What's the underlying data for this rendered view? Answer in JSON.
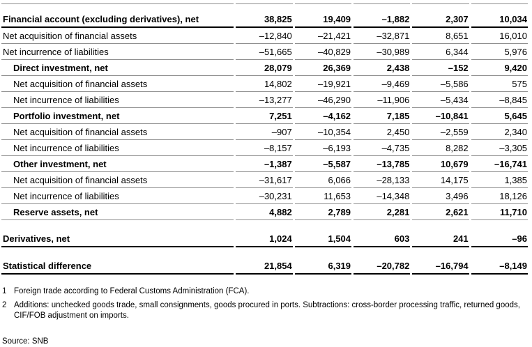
{
  "colors": {
    "rule_gray": "#8f8f8f",
    "rule_black": "#000000",
    "text": "#000000",
    "background": "#ffffff"
  },
  "table": {
    "rows": [
      {
        "label": "Financial account (excluding derivatives), net",
        "values": [
          "38,825",
          "19,409",
          "–1,882",
          "2,307",
          "10,034"
        ],
        "bold": true,
        "indent": 0,
        "rule": "thick",
        "first": true
      },
      {
        "label": "Net acquisition of financial assets",
        "values": [
          "–12,840",
          "–21,421",
          "–32,871",
          "8,651",
          "16,010"
        ],
        "bold": false,
        "indent": 0,
        "rule": "thin"
      },
      {
        "label": "Net incurrence of liabilities",
        "values": [
          "–51,665",
          "–40,829",
          "–30,989",
          "6,344",
          "5,976"
        ],
        "bold": false,
        "indent": 0,
        "rule": "thin"
      },
      {
        "label": "Direct investment, net",
        "values": [
          "28,079",
          "26,369",
          "2,438",
          "–152",
          "9,420"
        ],
        "bold": true,
        "indent": 1,
        "rule": "thin"
      },
      {
        "label": "Net acquisition of financial assets",
        "values": [
          "14,802",
          "–19,921",
          "–9,469",
          "–5,586",
          "575"
        ],
        "bold": false,
        "indent": 1,
        "rule": "thin"
      },
      {
        "label": "Net incurrence of liabilities",
        "values": [
          "–13,277",
          "–46,290",
          "–11,906",
          "–5,434",
          "–8,845"
        ],
        "bold": false,
        "indent": 1,
        "rule": "thin"
      },
      {
        "label": "Portfolio investment, net",
        "values": [
          "7,251",
          "–4,162",
          "7,185",
          "–10,841",
          "5,645"
        ],
        "bold": true,
        "indent": 1,
        "rule": "thin"
      },
      {
        "label": "Net acquisition of financial assets",
        "values": [
          "–907",
          "–10,354",
          "2,450",
          "–2,559",
          "2,340"
        ],
        "bold": false,
        "indent": 1,
        "rule": "thin"
      },
      {
        "label": "Net incurrence of liabilities",
        "values": [
          "–8,157",
          "–6,193",
          "–4,735",
          "8,282",
          "–3,305"
        ],
        "bold": false,
        "indent": 1,
        "rule": "thin"
      },
      {
        "label": "Other investment, net",
        "values": [
          "–1,387",
          "–5,587",
          "–13,785",
          "10,679",
          "–16,741"
        ],
        "bold": true,
        "indent": 1,
        "rule": "thin"
      },
      {
        "label": "Net acquisition of financial assets",
        "values": [
          "–31,617",
          "6,066",
          "–28,133",
          "14,175",
          "1,385"
        ],
        "bold": false,
        "indent": 1,
        "rule": "thin"
      },
      {
        "label": "Net incurrence of liabilities",
        "values": [
          "–30,231",
          "11,653",
          "–14,348",
          "3,496",
          "18,126"
        ],
        "bold": false,
        "indent": 1,
        "rule": "thin"
      },
      {
        "label": "Reserve assets, net",
        "values": [
          "4,882",
          "2,789",
          "2,281",
          "2,621",
          "11,710"
        ],
        "bold": true,
        "indent": 1,
        "rule": "thin"
      },
      {
        "spacer": true
      },
      {
        "label": "Derivatives, net",
        "values": [
          "1,024",
          "1,504",
          "603",
          "241",
          "–96"
        ],
        "bold": true,
        "indent": 0,
        "rule": "thick"
      },
      {
        "spacer": true
      },
      {
        "label": "Statistical difference",
        "values": [
          "21,854",
          "6,319",
          "–20,782",
          "–16,794",
          "–8,149"
        ],
        "bold": true,
        "indent": 0,
        "rule": "thick"
      }
    ]
  },
  "footnotes": [
    {
      "marker": "1",
      "text": "Foreign trade according to Federal Customs Administration (FCA)."
    },
    {
      "marker": "2",
      "text": "Additions: unchecked goods trade, small consignments, goods procured in ports. Subtractions: cross-border processing traffic, returned goods, CIF/FOB adjustment on imports."
    }
  ],
  "source": {
    "label": "Source: SNB"
  }
}
